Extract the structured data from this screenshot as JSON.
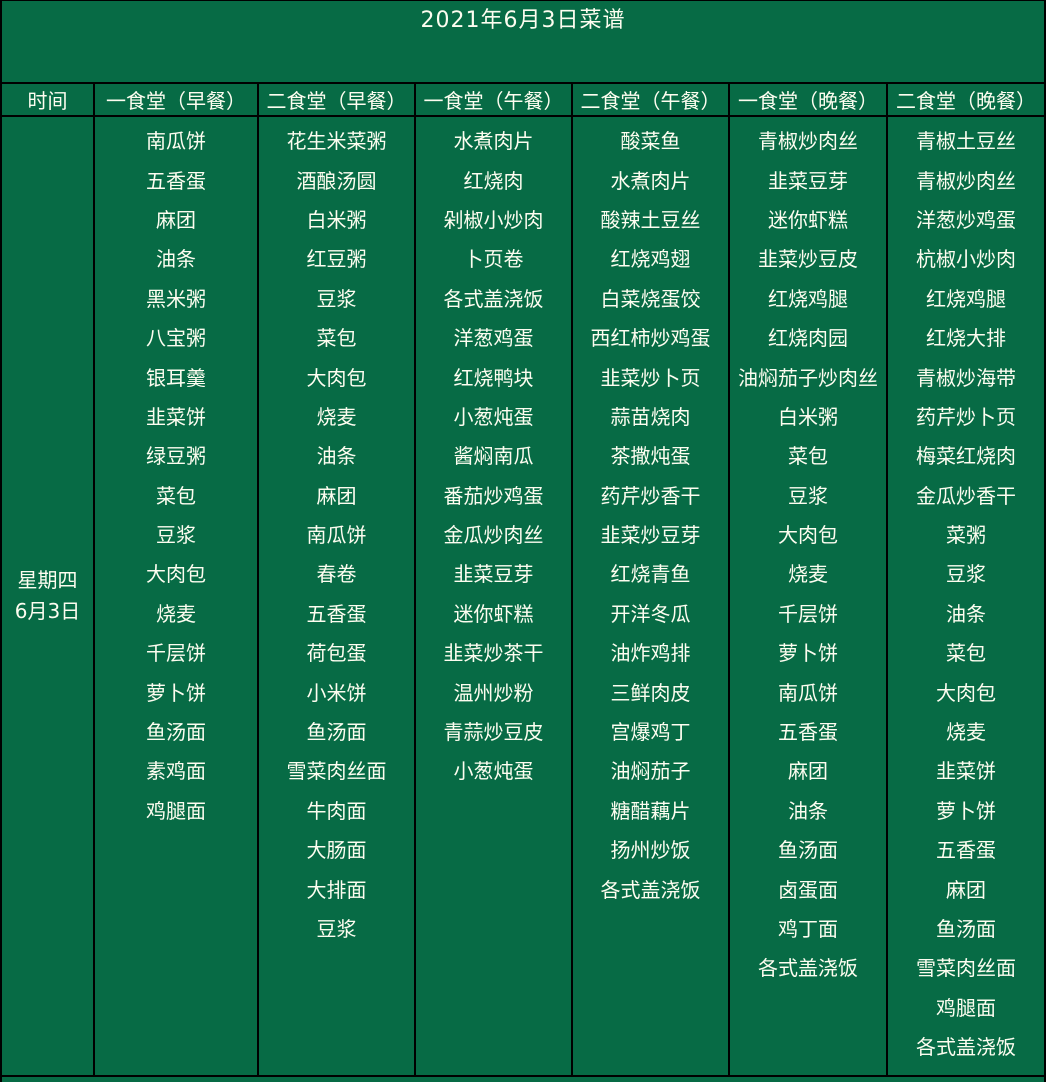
{
  "title": "2021年6月3日菜谱",
  "colors": {
    "background": "#076B45",
    "text": "#FDFDF0",
    "border": "#000000"
  },
  "table": {
    "time_header": "时间",
    "time_cell": {
      "weekday": "星期四",
      "date": "6月3日"
    },
    "columns": [
      {
        "header": "一食堂（早餐）",
        "items": [
          "南瓜饼",
          "五香蛋",
          "麻团",
          "油条",
          "黑米粥",
          "八宝粥",
          "银耳羹",
          "韭菜饼",
          "绿豆粥",
          "菜包",
          "豆浆",
          "大肉包",
          "烧麦",
          "千层饼",
          "萝卜饼",
          "鱼汤面",
          "素鸡面",
          "鸡腿面"
        ]
      },
      {
        "header": "二食堂（早餐）",
        "items": [
          "花生米菜粥",
          "酒酿汤圆",
          "白米粥",
          "红豆粥",
          "豆浆",
          "菜包",
          "大肉包",
          "烧麦",
          "油条",
          "麻团",
          "南瓜饼",
          "春卷",
          "五香蛋",
          "荷包蛋",
          "小米饼",
          "鱼汤面",
          "雪菜肉丝面",
          "牛肉面",
          "大肠面",
          "大排面",
          "豆浆"
        ]
      },
      {
        "header": "一食堂（午餐）",
        "items": [
          "水煮肉片",
          "红烧肉",
          "剁椒小炒肉",
          "卜页卷",
          "各式盖浇饭",
          "洋葱鸡蛋",
          "红烧鸭块",
          "小葱炖蛋",
          "酱焖南瓜",
          "番茄炒鸡蛋",
          "金瓜炒肉丝",
          "韭菜豆芽",
          "迷你虾糕",
          "韭菜炒茶干",
          "温州炒粉",
          "青蒜炒豆皮",
          "小葱炖蛋"
        ]
      },
      {
        "header": "二食堂（午餐）",
        "items": [
          "酸菜鱼",
          "水煮肉片",
          "酸辣土豆丝",
          "红烧鸡翅",
          "白菜烧蛋饺",
          "西红柿炒鸡蛋",
          "韭菜炒卜页",
          "蒜苗烧肉",
          "茶撒炖蛋",
          "药芹炒香干",
          "韭菜炒豆芽",
          "红烧青鱼",
          "开洋冬瓜",
          "油炸鸡排",
          "三鲜肉皮",
          "宫爆鸡丁",
          "油焖茄子",
          "糖醋藕片",
          "扬州炒饭",
          "各式盖浇饭"
        ]
      },
      {
        "header": "一食堂（晚餐）",
        "items": [
          "青椒炒肉丝",
          "韭菜豆芽",
          "迷你虾糕",
          "韭菜炒豆皮",
          "红烧鸡腿",
          "红烧肉园",
          "油焖茄子炒肉丝",
          "白米粥",
          "菜包",
          "豆浆",
          "大肉包",
          "烧麦",
          "千层饼",
          "萝卜饼",
          "南瓜饼",
          "五香蛋",
          "麻团",
          "油条",
          "鱼汤面",
          "卤蛋面",
          "鸡丁面",
          "各式盖浇饭"
        ]
      },
      {
        "header": "二食堂（晚餐）",
        "items": [
          "青椒土豆丝",
          "青椒炒肉丝",
          "洋葱炒鸡蛋",
          "杭椒小炒肉",
          "红烧鸡腿",
          "红烧大排",
          "青椒炒海带",
          "药芹炒卜页",
          "梅菜红烧肉",
          "金瓜炒香干",
          "菜粥",
          "豆浆",
          "油条",
          "菜包",
          "大肉包",
          "烧麦",
          "韭菜饼",
          "萝卜饼",
          "五香蛋",
          "麻团",
          "鱼汤面",
          "雪菜肉丝面",
          "鸡腿面",
          "各式盖浇饭"
        ]
      }
    ]
  }
}
